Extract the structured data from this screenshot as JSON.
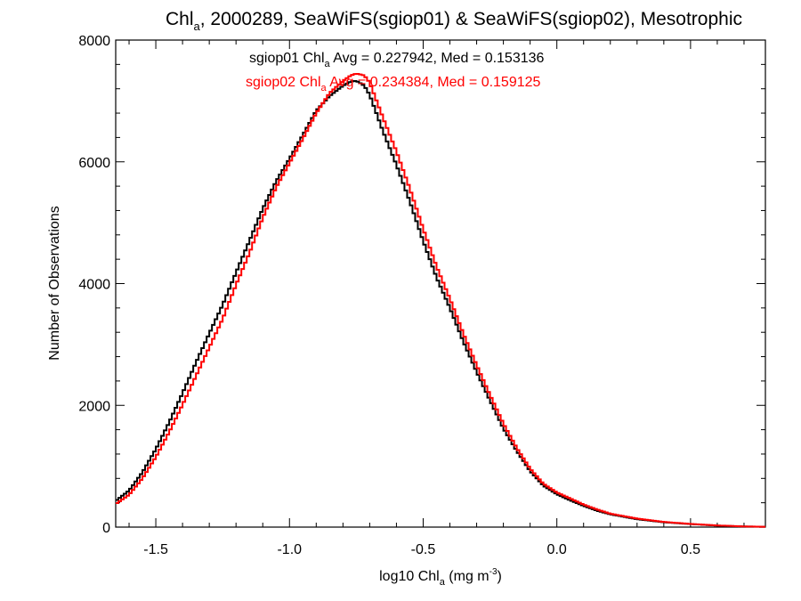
{
  "chart_data": {
    "type": "line",
    "title": {
      "prefix": "Chl",
      "sub": "a",
      "rest": ", 2000289, SeaWiFS(sgiop01) & SeaWiFS(sgiop02), Mesotrophic"
    },
    "xlabel": {
      "prefix": "log10 Chl",
      "sub": "a",
      "middle": " (mg m",
      "sup": "-3",
      "suffix": ")"
    },
    "ylabel": "Number of Observations",
    "xlim": [
      -1.65,
      0.78
    ],
    "ylim": [
      0,
      8000
    ],
    "x_ticks": [
      -1.5,
      -1.0,
      -0.5,
      0.0,
      0.5
    ],
    "x_tick_labels": [
      "-1.5",
      "-1.0",
      "-0.5",
      "0.0",
      "0.5"
    ],
    "y_ticks": [
      0,
      2000,
      4000,
      6000,
      8000
    ],
    "y_tick_labels": [
      "0",
      "2000",
      "4000",
      "6000",
      "8000"
    ],
    "step": true,
    "bin_width": 0.01,
    "series": [
      {
        "name": "sgiop01",
        "color": "#000000",
        "legend": {
          "prefix": "sgiop01 Chl",
          "sub": "a",
          "rest": " Avg = 0.227942, Med = 0.153136"
        },
        "points": [
          [
            -1.65,
            430
          ],
          [
            -1.6,
            600
          ],
          [
            -1.55,
            900
          ],
          [
            -1.5,
            1280
          ],
          [
            -1.45,
            1720
          ],
          [
            -1.4,
            2200
          ],
          [
            -1.35,
            2700
          ],
          [
            -1.3,
            3180
          ],
          [
            -1.25,
            3650
          ],
          [
            -1.2,
            4180
          ],
          [
            -1.15,
            4700
          ],
          [
            -1.1,
            5230
          ],
          [
            -1.05,
            5680
          ],
          [
            -1.0,
            6050
          ],
          [
            -0.95,
            6440
          ],
          [
            -0.9,
            6840
          ],
          [
            -0.85,
            7080
          ],
          [
            -0.8,
            7250
          ],
          [
            -0.77,
            7320
          ],
          [
            -0.75,
            7330
          ],
          [
            -0.72,
            7250
          ],
          [
            -0.7,
            7100
          ],
          [
            -0.65,
            6500
          ],
          [
            -0.6,
            5950
          ],
          [
            -0.55,
            5350
          ],
          [
            -0.5,
            4700
          ],
          [
            -0.45,
            4100
          ],
          [
            -0.4,
            3600
          ],
          [
            -0.35,
            3050
          ],
          [
            -0.3,
            2550
          ],
          [
            -0.25,
            2080
          ],
          [
            -0.2,
            1620
          ],
          [
            -0.15,
            1250
          ],
          [
            -0.1,
            920
          ],
          [
            -0.05,
            680
          ],
          [
            0.0,
            540
          ],
          [
            0.05,
            440
          ],
          [
            0.1,
            350
          ],
          [
            0.15,
            270
          ],
          [
            0.2,
            210
          ],
          [
            0.3,
            130
          ],
          [
            0.4,
            80
          ],
          [
            0.5,
            50
          ],
          [
            0.6,
            25
          ],
          [
            0.7,
            10
          ],
          [
            0.78,
            5
          ]
        ]
      },
      {
        "name": "sgiop02",
        "color": "#ff0000",
        "legend": {
          "prefix": "sgiop02 Chl",
          "sub": "a",
          "rest": " Avg = 0.234384, Med = 0.159125"
        },
        "points": [
          [
            -1.65,
            380
          ],
          [
            -1.6,
            530
          ],
          [
            -1.55,
            800
          ],
          [
            -1.5,
            1150
          ],
          [
            -1.45,
            1560
          ],
          [
            -1.4,
            2010
          ],
          [
            -1.35,
            2480
          ],
          [
            -1.3,
            2950
          ],
          [
            -1.25,
            3420
          ],
          [
            -1.2,
            3980
          ],
          [
            -1.15,
            4500
          ],
          [
            -1.1,
            5080
          ],
          [
            -1.05,
            5580
          ],
          [
            -1.0,
            5980
          ],
          [
            -0.95,
            6380
          ],
          [
            -0.9,
            6800
          ],
          [
            -0.85,
            7130
          ],
          [
            -0.8,
            7330
          ],
          [
            -0.77,
            7420
          ],
          [
            -0.75,
            7450
          ],
          [
            -0.72,
            7420
          ],
          [
            -0.7,
            7300
          ],
          [
            -0.65,
            6720
          ],
          [
            -0.6,
            6170
          ],
          [
            -0.55,
            5560
          ],
          [
            -0.5,
            4900
          ],
          [
            -0.45,
            4280
          ],
          [
            -0.4,
            3750
          ],
          [
            -0.35,
            3180
          ],
          [
            -0.3,
            2660
          ],
          [
            -0.25,
            2170
          ],
          [
            -0.2,
            1700
          ],
          [
            -0.15,
            1300
          ],
          [
            -0.1,
            960
          ],
          [
            -0.05,
            710
          ],
          [
            0.0,
            570
          ],
          [
            0.05,
            470
          ],
          [
            0.1,
            370
          ],
          [
            0.15,
            290
          ],
          [
            0.2,
            220
          ],
          [
            0.3,
            140
          ],
          [
            0.4,
            85
          ],
          [
            0.5,
            52
          ],
          [
            0.6,
            27
          ],
          [
            0.7,
            11
          ],
          [
            0.78,
            5
          ]
        ]
      }
    ]
  }
}
